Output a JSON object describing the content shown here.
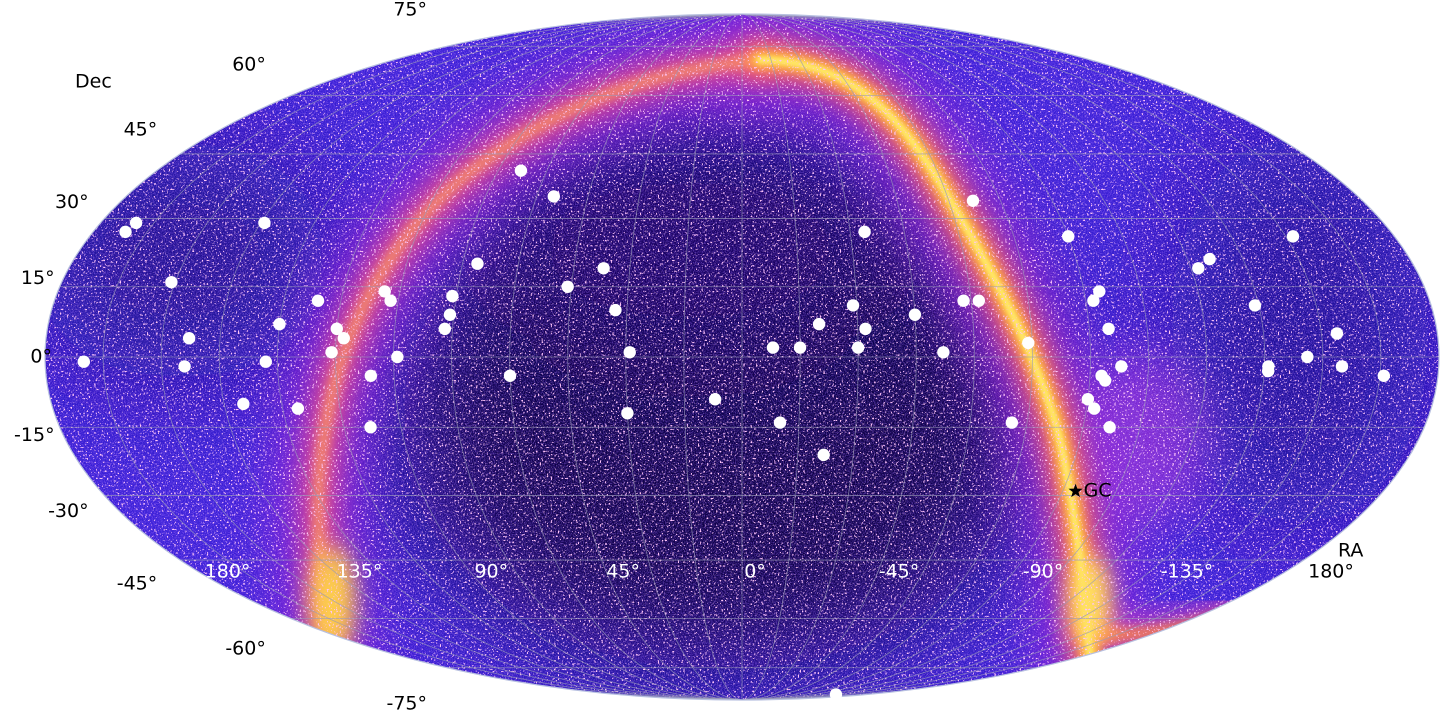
{
  "chart_data": {
    "type": "scatter",
    "projection": "mollweide",
    "xlabel": "RA",
    "ylabel": "Dec",
    "xlim": [
      180,
      -180
    ],
    "ylim": [
      -90,
      90
    ],
    "grid": true,
    "xticks": [
      {
        "value": 180,
        "label": "180°"
      },
      {
        "value": 135,
        "label": "135°"
      },
      {
        "value": 90,
        "label": "90°"
      },
      {
        "value": 45,
        "label": "45°"
      },
      {
        "value": 0,
        "label": "0°"
      },
      {
        "value": -45,
        "label": "-45°"
      },
      {
        "value": -90,
        "label": "-90°"
      },
      {
        "value": -135,
        "label": "-135°"
      },
      {
        "value": -180,
        "label": "180°"
      }
    ],
    "xgrid": [
      165,
      150,
      120,
      105,
      75,
      60,
      30,
      15,
      -15,
      -30,
      -60,
      -75,
      -105,
      -120,
      -150,
      -165
    ],
    "yticks": [
      {
        "value": 75,
        "label": "75°"
      },
      {
        "value": 60,
        "label": "60°"
      },
      {
        "value": 45,
        "label": "45°"
      },
      {
        "value": 30,
        "label": "30°"
      },
      {
        "value": 15,
        "label": "15°"
      },
      {
        "value": 0,
        "label": "0°"
      },
      {
        "value": -15,
        "label": "-15°"
      },
      {
        "value": -30,
        "label": "-30°"
      },
      {
        "value": -45,
        "label": "-45°"
      },
      {
        "value": -60,
        "label": "-60°"
      },
      {
        "value": -75,
        "label": "-75°"
      }
    ],
    "series": [
      {
        "color": "#ffffff",
        "x": [
          170,
          171,
          170,
          151,
          143,
          144,
          130,
          134,
          123,
          120,
          116,
          111,
          105,
          106,
          103,
          94,
          92,
          89,
          96,
          98,
          77,
          76,
          76,
          71,
          60,
          68,
          55,
          46,
          37,
          33,
          29,
          30,
          7,
          -8,
          -10,
          -15,
          -20,
          -22,
          -29,
          -32,
          -30,
          -34,
          -45,
          -52,
          -58,
          -62,
          -67,
          -74,
          -71,
          -90,
          -90,
          -92,
          -94,
          -92,
          -95,
          -93,
          -94,
          -98,
          -97,
          -122,
          -126,
          -134,
          -136,
          -136,
          -152,
          -146,
          -154,
          -155,
          -166,
          -136
        ],
        "y": [
          -1,
          27,
          29,
          16,
          4,
          -2,
          -10,
          29,
          -1,
          7,
          -11,
          12,
          6,
          1,
          4,
          14,
          12,
          0,
          -4,
          -15,
          6,
          9,
          13,
          20,
          -4,
          41,
          35,
          15,
          19,
          10,
          1,
          -12,
          -9,
          2,
          -14,
          2,
          7,
          -21,
          11,
          6,
          2,
          27,
          9,
          1,
          12,
          12,
          34,
          3,
          -14,
          26,
          -9,
          -11,
          14,
          12,
          6,
          -4,
          -5,
          -2,
          -15,
          19,
          21,
          11,
          -2,
          -3,
          26,
          0,
          5,
          -2,
          -4,
          -86
        ]
      }
    ],
    "annotations": [
      {
        "text": "GC",
        "x": -93.6,
        "y": -29
      }
    ]
  }
}
